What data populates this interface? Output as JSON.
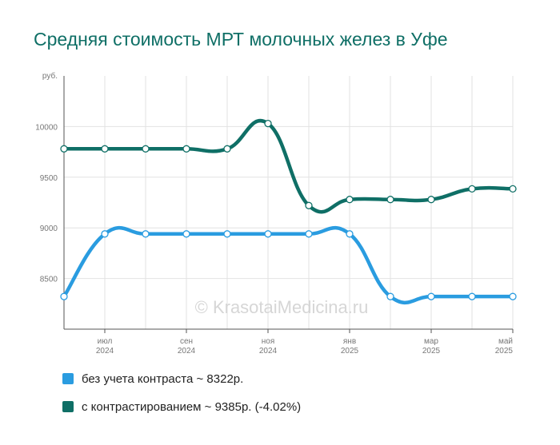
{
  "chart_data": {
    "type": "line",
    "title": "Средняя стоимость МРТ молочных желез в Уфе",
    "y_unit": "руб.",
    "ylim": [
      8000,
      10500
    ],
    "y_ticks": [
      8500,
      9000,
      9500,
      10000
    ],
    "x_ticks": [
      {
        "month": "июл",
        "year": "2024"
      },
      {
        "month": "сен",
        "year": "2024"
      },
      {
        "month": "ноя",
        "year": "2024"
      },
      {
        "month": "янв",
        "year": "2025"
      },
      {
        "month": "мар",
        "year": "2025"
      },
      {
        "month": "май",
        "year": "2025"
      }
    ],
    "series": [
      {
        "name": "без учета контраста",
        "summary": "~ 8322р.",
        "color": "#2a9ce0",
        "values": [
          8322,
          8940,
          8940,
          8940,
          8940,
          8940,
          8940,
          8940,
          8322,
          8322,
          8322,
          8322
        ]
      },
      {
        "name": "с контрастированием",
        "summary": "~ 9385р. (-4.02%)",
        "color": "#0f6f66",
        "values": [
          9780,
          9780,
          9780,
          9780,
          9780,
          10030,
          9220,
          9280,
          9280,
          9280,
          9385,
          9385
        ]
      }
    ],
    "grid": true,
    "legend_position": "bottom-left"
  },
  "watermark": "© KrasotaiMedicina.ru"
}
